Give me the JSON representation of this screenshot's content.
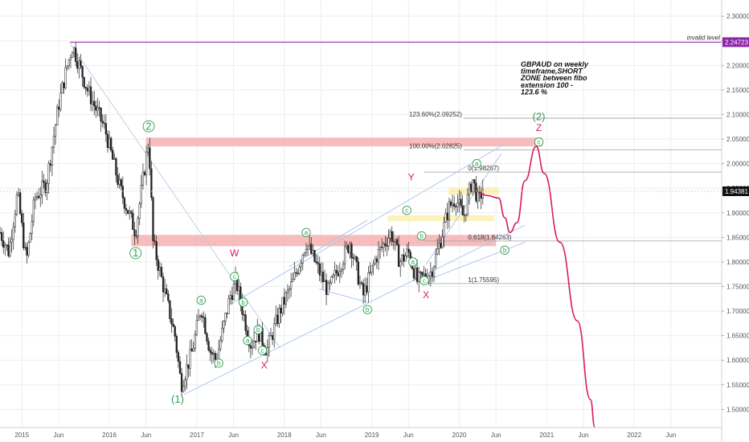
{
  "chart_data": {
    "type": "candlestick",
    "title": "",
    "x_ticks": [
      {
        "label": "2015",
        "t": 2015.0
      },
      {
        "label": "Jun",
        "t": 2015.42
      },
      {
        "label": "2016",
        "t": 2016.0
      },
      {
        "label": "Jun",
        "t": 2016.42
      },
      {
        "label": "2017",
        "t": 2017.0
      },
      {
        "label": "Jun",
        "t": 2017.42
      },
      {
        "label": "2018",
        "t": 2018.0
      },
      {
        "label": "Jun",
        "t": 2018.42
      },
      {
        "label": "2019",
        "t": 2019.0
      },
      {
        "label": "Jun",
        "t": 2019.42
      },
      {
        "label": "2020",
        "t": 2020.0
      },
      {
        "label": "Jun",
        "t": 2020.42
      },
      {
        "label": "2021",
        "t": 2021.0
      },
      {
        "label": "Jun",
        "t": 2021.42
      },
      {
        "label": "2022",
        "t": 2022.0
      },
      {
        "label": "Jun",
        "t": 2022.42
      }
    ],
    "y_ticks": [
      "2.30000",
      "2.25000",
      "2.20000",
      "2.15000",
      "2.10000",
      "2.05000",
      "2.00000",
      "1.95000",
      "1.90000",
      "1.85000",
      "1.80000",
      "1.75000",
      "1.70000",
      "1.65000",
      "1.60000",
      "1.55000",
      "1.50000"
    ],
    "ylim": [
      1.463,
      2.333
    ],
    "xlim": [
      2014.75,
      2023.0
    ],
    "current_price": {
      "value": 1.94381,
      "label": "1.94381"
    },
    "invalid_level": {
      "value": 2.24723,
      "label": "2.24723",
      "text": "invalid level",
      "start_t": 2015.55
    },
    "anchors": [
      {
        "t": 2014.75,
        "v": 1.86
      },
      {
        "t": 2014.85,
        "v": 1.82
      },
      {
        "t": 2014.95,
        "v": 1.94
      },
      {
        "t": 2015.05,
        "v": 1.8
      },
      {
        "t": 2015.15,
        "v": 1.93
      },
      {
        "t": 2015.28,
        "v": 1.96
      },
      {
        "t": 2015.42,
        "v": 2.12
      },
      {
        "t": 2015.52,
        "v": 2.2
      },
      {
        "t": 2015.58,
        "v": 2.24
      },
      {
        "t": 2015.75,
        "v": 2.15
      },
      {
        "t": 2015.95,
        "v": 2.07
      },
      {
        "t": 2016.12,
        "v": 1.95
      },
      {
        "t": 2016.3,
        "v": 1.86
      },
      {
        "t": 2016.45,
        "v": 2.05
      },
      {
        "t": 2016.5,
        "v": 1.84
      },
      {
        "t": 2016.63,
        "v": 1.74
      },
      {
        "t": 2016.75,
        "v": 1.65
      },
      {
        "t": 2016.82,
        "v": 1.55
      },
      {
        "t": 2016.95,
        "v": 1.62
      },
      {
        "t": 2017.05,
        "v": 1.71
      },
      {
        "t": 2017.15,
        "v": 1.62
      },
      {
        "t": 2017.22,
        "v": 1.6
      },
      {
        "t": 2017.38,
        "v": 1.73
      },
      {
        "t": 2017.45,
        "v": 1.76
      },
      {
        "t": 2017.55,
        "v": 1.68
      },
      {
        "t": 2017.62,
        "v": 1.63
      },
      {
        "t": 2017.7,
        "v": 1.66
      },
      {
        "t": 2017.8,
        "v": 1.62
      },
      {
        "t": 2017.95,
        "v": 1.7
      },
      {
        "t": 2018.1,
        "v": 1.76
      },
      {
        "t": 2018.25,
        "v": 1.84
      },
      {
        "t": 2018.4,
        "v": 1.78
      },
      {
        "t": 2018.5,
        "v": 1.74
      },
      {
        "t": 2018.75,
        "v": 1.84
      },
      {
        "t": 2018.9,
        "v": 1.73
      },
      {
        "t": 2019.05,
        "v": 1.81
      },
      {
        "t": 2019.22,
        "v": 1.86
      },
      {
        "t": 2019.32,
        "v": 1.8
      },
      {
        "t": 2019.42,
        "v": 1.82
      },
      {
        "t": 2019.52,
        "v": 1.76
      },
      {
        "t": 2019.68,
        "v": 1.78
      },
      {
        "t": 2019.78,
        "v": 1.84
      },
      {
        "t": 2019.88,
        "v": 1.91
      },
      {
        "t": 2019.96,
        "v": 1.93
      },
      {
        "t": 2020.05,
        "v": 1.89
      },
      {
        "t": 2020.15,
        "v": 1.97
      },
      {
        "t": 2020.22,
        "v": 1.92
      },
      {
        "t": 2020.27,
        "v": 1.95
      }
    ],
    "fib_levels": [
      {
        "label": "123.60%(2.09252)",
        "value": 2.09252,
        "start_t": 2020.05
      },
      {
        "label": "100.00%(2.02825)",
        "value": 2.02825,
        "start_t": 2020.05
      },
      {
        "label": "0(1.98287)",
        "value": 1.98287,
        "start_t": 2019.6
      },
      {
        "label": "0.618(1.84263)",
        "value": 1.84263,
        "start_t": 2019.6
      },
      {
        "label": "1(1.75595)",
        "value": 1.75595,
        "start_t": 2019.6
      }
    ],
    "zones": [
      {
        "name": "sell-zone-upper",
        "t1": 2016.42,
        "t2": 2020.95,
        "v1": 2.035,
        "v2": 2.053,
        "color": "#f6b1b1"
      },
      {
        "name": "resistance-zone-middle",
        "t1": 2016.25,
        "t2": 2020.42,
        "v1": 1.832,
        "v2": 1.855,
        "color": "#f6b1b1"
      },
      {
        "name": "yellow-zone-upper",
        "t1": 2019.88,
        "t2": 2020.45,
        "v1": 1.937,
        "v2": 1.952,
        "color": "#fbf0b0"
      },
      {
        "name": "yellow-zone-lower",
        "t1": 2019.18,
        "t2": 2020.4,
        "v1": 1.883,
        "v2": 1.895,
        "color": "#fbf0b0"
      }
    ],
    "trendlines": [
      {
        "name": "downtrend-line",
        "t1": 2015.55,
        "v1": 2.245,
        "t2": 2017.95,
        "v2": 1.625,
        "color": "#b9cbe3"
      },
      {
        "name": "channel-lower",
        "t1": 2016.85,
        "v1": 1.53,
        "t2": 2020.75,
        "v2": 1.875,
        "color": "#a6c4ea"
      },
      {
        "name": "channel-upper",
        "t1": 2017.35,
        "v1": 1.71,
        "t2": 2020.52,
        "v2": 2.04,
        "color": "#a6c4ea"
      },
      {
        "name": "channel-mid",
        "t1": 2018.05,
        "v1": 1.79,
        "t2": 2018.95,
        "v2": 1.885,
        "color": "#a6c4ea"
      },
      {
        "name": "lower-guide",
        "t1": 2018.4,
        "v1": 1.745,
        "t2": 2018.95,
        "v2": 1.718,
        "color": "#a6c4ea"
      },
      {
        "name": "wedge-lower",
        "t1": 2019.62,
        "v1": 1.762,
        "t2": 2020.75,
        "v2": 1.84,
        "color": "#a6c4ea"
      },
      {
        "name": "wedge-upper",
        "t1": 2019.62,
        "v1": 1.795,
        "t2": 2020.48,
        "v2": 2.02,
        "color": "#a6c4ea"
      }
    ],
    "projection": [
      {
        "t": 2020.22,
        "v": 1.94
      },
      {
        "t": 2020.32,
        "v": 1.935
      },
      {
        "t": 2020.45,
        "v": 1.93
      },
      {
        "t": 2020.52,
        "v": 1.89
      },
      {
        "t": 2020.58,
        "v": 1.86
      },
      {
        "t": 2020.66,
        "v": 1.88
      },
      {
        "t": 2020.75,
        "v": 1.965
      },
      {
        "t": 2020.88,
        "v": 2.035
      },
      {
        "t": 2020.97,
        "v": 1.98
      },
      {
        "t": 2021.15,
        "v": 1.84
      },
      {
        "t": 2021.35,
        "v": 1.68
      },
      {
        "t": 2021.5,
        "v": 1.52
      },
      {
        "t": 2021.55,
        "v": 1.463
      }
    ],
    "projection_color": "#d81b60",
    "wave_labels": [
      {
        "text": "2",
        "t": 2016.45,
        "v": 2.076,
        "style": "circle-big"
      },
      {
        "text": "1",
        "t": 2016.3,
        "v": 1.818,
        "style": "circle-big"
      },
      {
        "text": "(1)",
        "t": 2016.78,
        "v": 1.52,
        "style": "big"
      },
      {
        "text": "a",
        "t": 2017.05,
        "v": 1.722,
        "style": "circle"
      },
      {
        "text": "b",
        "t": 2017.25,
        "v": 1.594,
        "style": "circle"
      },
      {
        "text": "c",
        "t": 2017.43,
        "v": 1.77,
        "style": "circle"
      },
      {
        "text": "W",
        "t": 2017.43,
        "v": 1.818,
        "style": "magenta"
      },
      {
        "text": "b",
        "t": 2017.53,
        "v": 1.718,
        "style": "circle"
      },
      {
        "text": "a",
        "t": 2017.58,
        "v": 1.64,
        "style": "circle"
      },
      {
        "text": "b",
        "t": 2017.7,
        "v": 1.662,
        "style": "circle"
      },
      {
        "text": "c",
        "t": 2017.75,
        "v": 1.62,
        "style": "circle"
      },
      {
        "text": "X",
        "t": 2017.77,
        "v": 1.59,
        "style": "magenta"
      },
      {
        "text": "a",
        "t": 2018.25,
        "v": 1.86,
        "style": "circle"
      },
      {
        "text": "b",
        "t": 2018.95,
        "v": 1.703,
        "style": "circle"
      },
      {
        "text": "c",
        "t": 2019.4,
        "v": 1.905,
        "style": "circle"
      },
      {
        "text": "Y",
        "t": 2019.45,
        "v": 1.972,
        "style": "magenta"
      },
      {
        "text": "b",
        "t": 2019.57,
        "v": 1.853,
        "style": "circle"
      },
      {
        "text": "a",
        "t": 2019.47,
        "v": 1.8,
        "style": "circle"
      },
      {
        "text": "c",
        "t": 2019.6,
        "v": 1.762,
        "style": "circle"
      },
      {
        "text": "X",
        "t": 2019.62,
        "v": 1.733,
        "style": "magenta"
      },
      {
        "text": "a",
        "t": 2020.2,
        "v": 2.0,
        "style": "circle"
      },
      {
        "text": "b",
        "t": 2020.52,
        "v": 1.824,
        "style": "circle"
      },
      {
        "text": "c",
        "t": 2020.91,
        "v": 2.044,
        "style": "circle"
      },
      {
        "text": "Z",
        "t": 2020.91,
        "v": 2.073,
        "style": "magenta"
      },
      {
        "text": "(2)",
        "t": 2020.91,
        "v": 2.095,
        "style": "big"
      }
    ],
    "annotation": {
      "lines": [
        "GBPAUD on weekly",
        "timeframe,SHORT",
        "ZONE between fibo",
        "extension 100 -",
        "123.6 %"
      ]
    },
    "colors": {
      "up": "#222222",
      "down": "#222222",
      "grid": "#eeeeee",
      "axis_text": "#555555",
      "invalid": "#8e24aa",
      "fib": "#9e9e9e"
    }
  }
}
